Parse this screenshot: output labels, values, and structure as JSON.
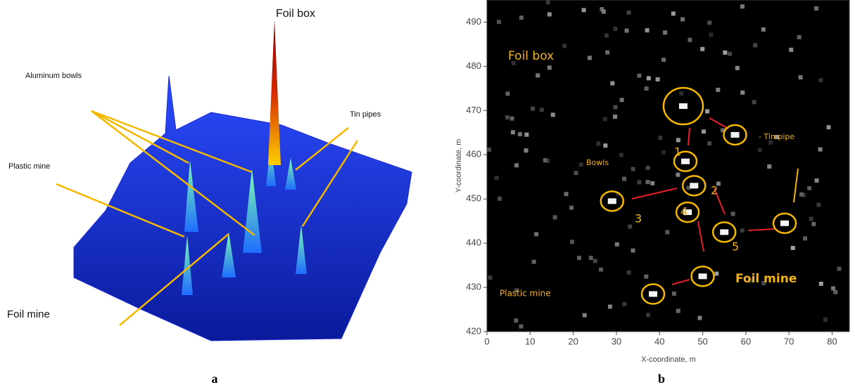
{
  "chart_data": [
    {
      "type": "surface",
      "annotations": [
        "Foil box",
        "Aluminum bowls",
        "Tin pipes",
        "Plastic mine",
        "Foil mine"
      ],
      "panel_label": "a"
    },
    {
      "type": "heatmap",
      "xlabel": "X-coordinate, m",
      "ylabel": "Y-coordinate, m",
      "xlim": [
        0,
        84
      ],
      "xticks": [
        0,
        10,
        20,
        30,
        40,
        50,
        60,
        70,
        80
      ],
      "ylim": [
        420,
        495
      ],
      "yticks": [
        420,
        430,
        440,
        450,
        460,
        470,
        480,
        490
      ],
      "points": {
        "x": [
          45.5,
          57.5,
          46,
          48,
          29,
          46.5,
          55,
          69,
          38.5,
          50
        ],
        "y": [
          471,
          464.5,
          458.5,
          453,
          449.5,
          447,
          442.5,
          444.5,
          428.5,
          432.5
        ]
      },
      "annotations": [
        "Foil box",
        "- Tin pipe",
        "Bowls",
        "Plastic mine",
        "Foil mine",
        "1",
        "2",
        "3",
        "4",
        "5"
      ],
      "panel_label": "b"
    }
  ]
}
